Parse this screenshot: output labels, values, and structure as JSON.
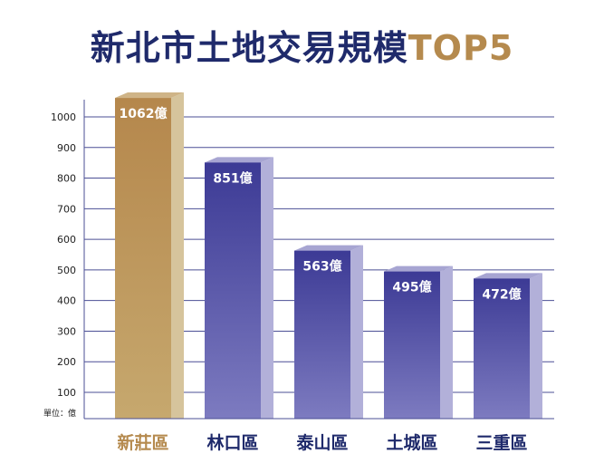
{
  "title": {
    "main": "新北市土地交易規模",
    "accent": "TOP5"
  },
  "colors": {
    "title_main": "#1f2a6b",
    "title_accent": "#b58a4e",
    "highlight_bar": "#b78b52",
    "bar": "#5c5aa8",
    "gridline": "#4b4f95",
    "highlight_label": "#b58a4e",
    "category_label": "#1f2a6b"
  },
  "chart_data": {
    "type": "bar",
    "categories": [
      "新莊區",
      "林口區",
      "泰山區",
      "土城區",
      "三重區"
    ],
    "values": [
      1062,
      851,
      563,
      495,
      472
    ],
    "value_labels": [
      "1062億",
      "851億",
      "563億",
      "495億",
      "472億"
    ],
    "highlight_index": 0,
    "unit_label": "單位：億",
    "y_ticks": [
      100,
      200,
      300,
      400,
      500,
      600,
      700,
      800,
      900,
      1000
    ],
    "ylim": [
      70,
      1100
    ],
    "grid": true
  }
}
